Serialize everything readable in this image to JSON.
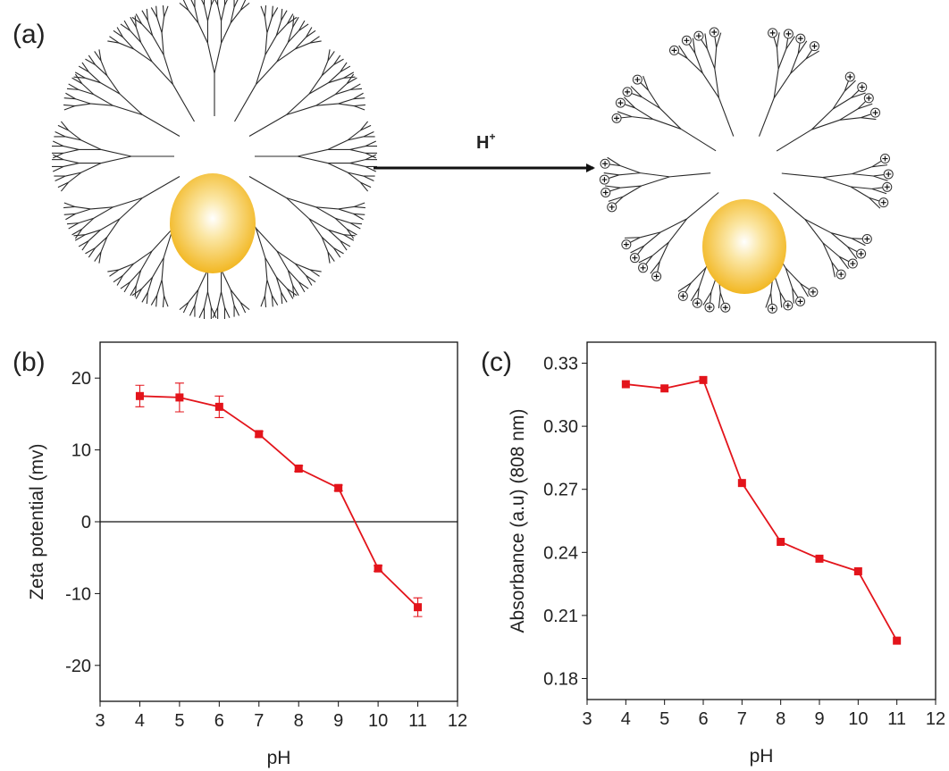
{
  "panels": [
    "(a)",
    "(b)",
    "(c)"
  ],
  "diagram": {
    "arrow_label": "H",
    "arrow_label_sup": "+"
  },
  "chart_data": [
    {
      "type": "line",
      "x": [
        4,
        5,
        6,
        7,
        8,
        9,
        10,
        11
      ],
      "values": [
        17.5,
        17.3,
        16.0,
        12.2,
        7.4,
        4.7,
        -6.5,
        -11.9
      ],
      "errors": [
        1.5,
        2.0,
        1.5,
        0.4,
        0.4,
        0.4,
        0.4,
        1.3
      ],
      "color": "#e3141b",
      "xlabel": "pH",
      "ylabel": "Zeta potential (mv)",
      "xlim": [
        3,
        12
      ],
      "xticks": [
        3,
        4,
        5,
        6,
        7,
        8,
        9,
        10,
        11,
        12
      ],
      "ylim": [
        -25,
        25
      ],
      "yticks": [
        -20,
        -10,
        0,
        10,
        20
      ],
      "zero_line": true
    },
    {
      "type": "line",
      "x": [
        4,
        5,
        6,
        7,
        8,
        9,
        10,
        11
      ],
      "values": [
        0.32,
        0.318,
        0.322,
        0.273,
        0.245,
        0.237,
        0.231,
        0.198
      ],
      "color": "#e3141b",
      "xlabel": "pH",
      "ylabel": "Absorbance (a.u) (808 nm)",
      "xlim": [
        3,
        12
      ],
      "xticks": [
        3,
        4,
        5,
        6,
        7,
        8,
        9,
        10,
        11,
        12
      ],
      "ylim": [
        0.17,
        0.34
      ],
      "yticks": [
        0.18,
        0.21,
        0.24,
        0.27,
        {
          "value": 0.3,
          "label": "0.30"
        },
        0.33
      ],
      "zero_line": false
    }
  ]
}
